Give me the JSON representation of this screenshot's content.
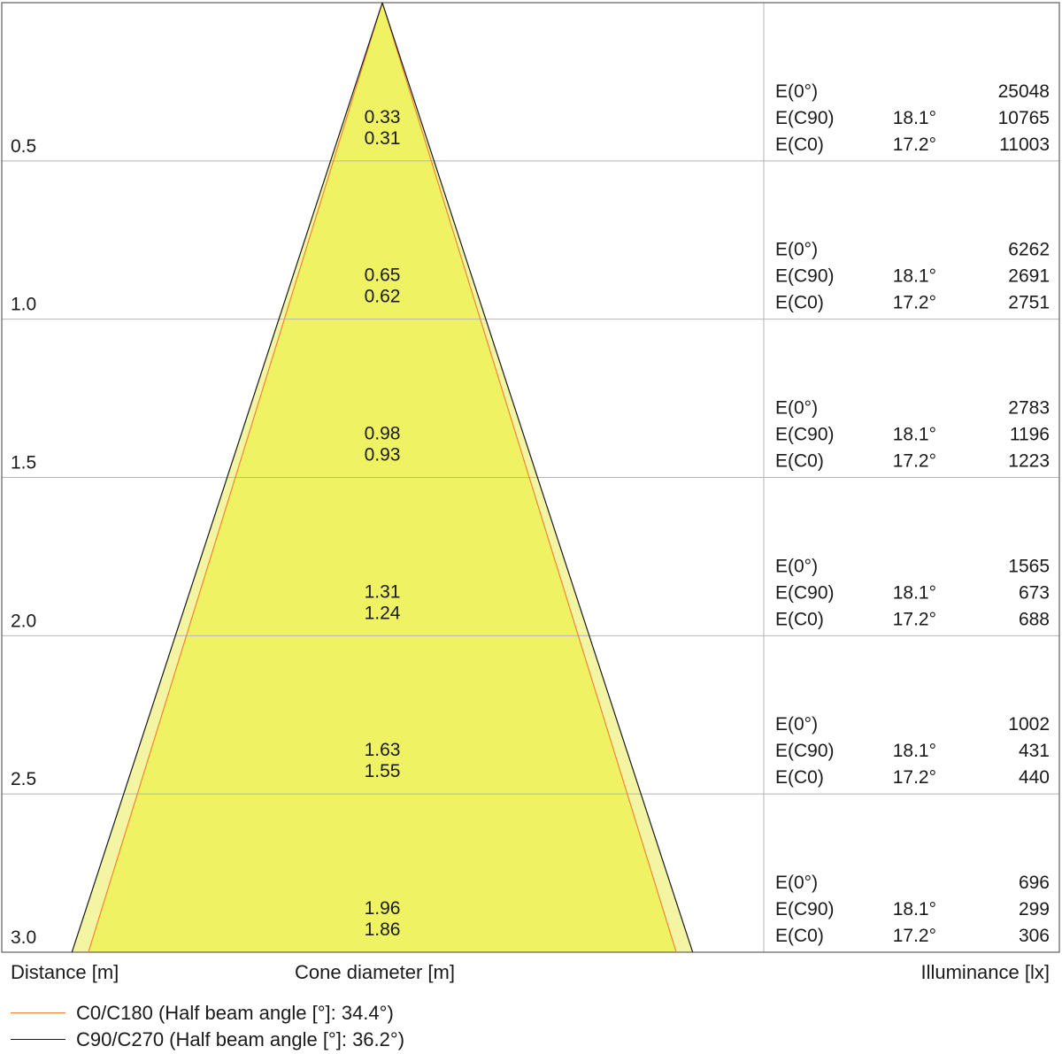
{
  "chart_data": {
    "type": "cone-diagram",
    "xlabel": "Distance [m]",
    "center_label": "Cone diameter [m]",
    "right_label": "Illuminance [lx]",
    "colors": {
      "cone_fill": "#eef263",
      "cone_outer_fill": "#f3f5a2",
      "c0_line": "#f07e2a",
      "c90_line": "#1a1a1a",
      "grid": "#b5b5b5"
    },
    "series": [
      {
        "name": "C0/C180 (Half beam angle [°]: 34.4°)",
        "half_beam_angle": 34.4,
        "color": "#f07e2a"
      },
      {
        "name": "C90/C270 (Half beam angle [°]: 36.2°)",
        "half_beam_angle": 36.2,
        "color": "#1a1a1a"
      }
    ],
    "rows": [
      {
        "distance": "0.5",
        "d_c90": "0.33",
        "d_c0": "0.31",
        "e0_label": "E(0°)",
        "e0": "25048",
        "c90_label": "E(C90)",
        "c90_angle": "18.1°",
        "c90": "10765",
        "c0_label": "E(C0)",
        "c0_angle": "17.2°",
        "c0": "11003"
      },
      {
        "distance": "1.0",
        "d_c90": "0.65",
        "d_c0": "0.62",
        "e0_label": "E(0°)",
        "e0": "6262",
        "c90_label": "E(C90)",
        "c90_angle": "18.1°",
        "c90": "2691",
        "c0_label": "E(C0)",
        "c0_angle": "17.2°",
        "c0": "2751"
      },
      {
        "distance": "1.5",
        "d_c90": "0.98",
        "d_c0": "0.93",
        "e0_label": "E(0°)",
        "e0": "2783",
        "c90_label": "E(C90)",
        "c90_angle": "18.1°",
        "c90": "1196",
        "c0_label": "E(C0)",
        "c0_angle": "17.2°",
        "c0": "1223"
      },
      {
        "distance": "2.0",
        "d_c90": "1.31",
        "d_c0": "1.24",
        "e0_label": "E(0°)",
        "e0": "1565",
        "c90_label": "E(C90)",
        "c90_angle": "18.1°",
        "c90": "673",
        "c0_label": "E(C0)",
        "c0_angle": "17.2°",
        "c0": "688"
      },
      {
        "distance": "2.5",
        "d_c90": "1.63",
        "d_c0": "1.55",
        "e0_label": "E(0°)",
        "e0": "1002",
        "c90_label": "E(C90)",
        "c90_angle": "18.1°",
        "c90": "431",
        "c0_label": "E(C0)",
        "c0_angle": "17.2°",
        "c0": "440"
      },
      {
        "distance": "3.0",
        "d_c90": "1.96",
        "d_c0": "1.86",
        "e0_label": "E(0°)",
        "e0": "696",
        "c90_label": "E(C90)",
        "c90_angle": "18.1°",
        "c90": "299",
        "c0_label": "E(C0)",
        "c0_angle": "17.2°",
        "c0": "306"
      }
    ],
    "legend": [
      {
        "label": "C0/C180 (Half beam angle [°]: 34.4°)",
        "color": "#f07e2a"
      },
      {
        "label": "C90/C270 (Half beam angle [°]: 36.2°)",
        "color": "#1a1a1a"
      }
    ]
  }
}
